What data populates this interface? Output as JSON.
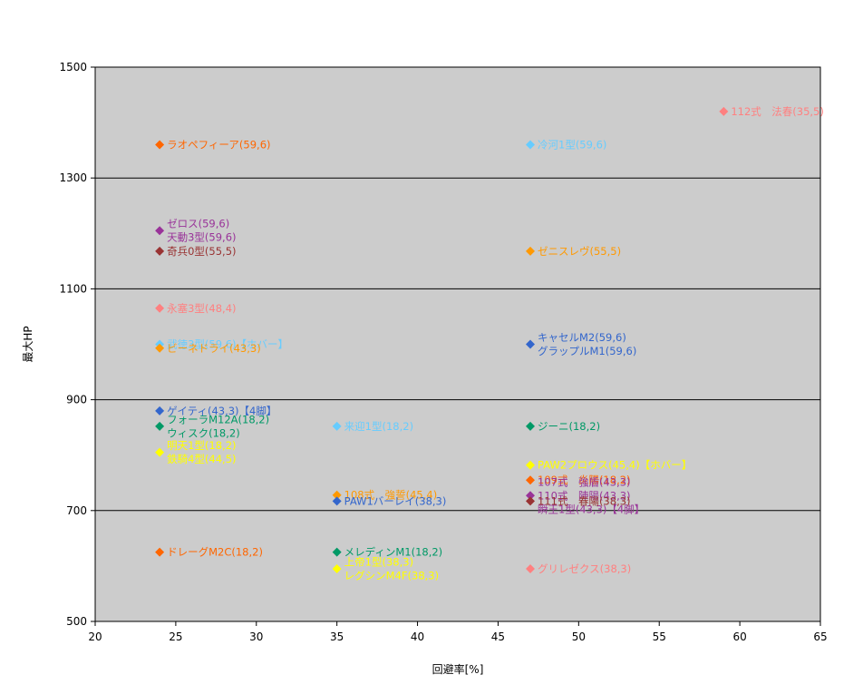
{
  "chart_data": {
    "type": "scatter",
    "xlabel": "回避率[%]",
    "ylabel": "最大HP",
    "xlim": [
      20,
      65
    ],
    "ylim": [
      500,
      1500
    ],
    "x_ticks": [
      "20",
      "25",
      "30",
      "35",
      "40",
      "45",
      "50",
      "55",
      "60",
      "65"
    ],
    "y_ticks": [
      "500",
      "700",
      "900",
      "1100",
      "1300",
      "1500"
    ],
    "grid": "horizontal",
    "plot_background": "#cccccc",
    "points": [
      {
        "x": 24,
        "y": 1360,
        "label": "ラオペフィーア(59,6)",
        "color": "#ff6600"
      },
      {
        "x": 47,
        "y": 1360,
        "label": "冷河1型(59,6)",
        "color": "#66ccff"
      },
      {
        "x": 59,
        "y": 1420,
        "label": "112式　法春(35,5)",
        "color": "#ff8080"
      },
      {
        "x": 24,
        "y": 1205,
        "label": "ゼロス(59,6)",
        "color": "#993399"
      },
      {
        "x": 24,
        "y": 1205,
        "label": "天動3型(59,6)",
        "color": "#993399"
      },
      {
        "x": 24,
        "y": 1168,
        "label": "奇兵0型(55,5)",
        "color": "#993333"
      },
      {
        "x": 47,
        "y": 1168,
        "label": "ゼニスレヴ(55,5)",
        "color": "#ff9900"
      },
      {
        "x": 24,
        "y": 1065,
        "label": "永塞3型(48,4)",
        "color": "#ff8080"
      },
      {
        "x": 24,
        "y": 1000,
        "label": "武徳3型(59,6)【ホバー】",
        "color": "#66ccff"
      },
      {
        "x": 24,
        "y": 993,
        "label": "ビーネドライ(43,3)",
        "color": "#ff9900"
      },
      {
        "x": 47,
        "y": 1000,
        "label": "キャセルM2(59,6)",
        "color": "#3366cc"
      },
      {
        "x": 47,
        "y": 1000,
        "label": "グラップルM1(59,6)",
        "color": "#3366cc"
      },
      {
        "x": 24,
        "y": 880,
        "label": "ゲイティ(43,3)【4脚】",
        "color": "#3366cc"
      },
      {
        "x": 24,
        "y": 852,
        "label": "フォーラM12A(18,2)",
        "color": "#009966"
      },
      {
        "x": 24,
        "y": 852,
        "label": "ウィスク(18,2)",
        "color": "#009966"
      },
      {
        "x": 24,
        "y": 805,
        "label": "明天1型(18,2)",
        "color": "#ffff00"
      },
      {
        "x": 24,
        "y": 805,
        "label": "鉄騎4型(44,5)",
        "color": "#ffff00"
      },
      {
        "x": 35,
        "y": 852,
        "label": "来迎1型(18,2)",
        "color": "#66ccff"
      },
      {
        "x": 47,
        "y": 852,
        "label": "ジーニ(18,2)",
        "color": "#009966"
      },
      {
        "x": 47,
        "y": 782,
        "label": "PAW2プロウス(45,4)【ホバー】",
        "color": "#ffff00"
      },
      {
        "x": 47,
        "y": 755,
        "label": "109式　炎陽(18,2)",
        "color": "#ff6600"
      },
      {
        "x": 47,
        "y": 727,
        "label": "107式　強盾(43,3)",
        "color": "#993399"
      },
      {
        "x": 47,
        "y": 727,
        "label": "110式　陣陽(43,3)",
        "color": "#993399"
      },
      {
        "x": 47,
        "y": 727,
        "label": "瞬王1型(43,3)【4脚】",
        "color": "#993399"
      },
      {
        "x": 47,
        "y": 717,
        "label": "111式　春陽(38,3)",
        "color": "#993333"
      },
      {
        "x": 35,
        "y": 728,
        "label": "108式　強誓(45,4)",
        "color": "#ff9900"
      },
      {
        "x": 35,
        "y": 717,
        "label": "PAW1バーレイ(38,3)",
        "color": "#3366cc"
      },
      {
        "x": 24,
        "y": 625,
        "label": "ドレーグM2C(18,2)",
        "color": "#ff6600"
      },
      {
        "x": 35,
        "y": 625,
        "label": "メレディンM1(18,2)",
        "color": "#009966"
      },
      {
        "x": 35,
        "y": 595,
        "label": "上帝1型(38,3)",
        "color": "#ffff00"
      },
      {
        "x": 35,
        "y": 595,
        "label": "レグシンM4F(38,3)",
        "color": "#ffff00"
      },
      {
        "x": 47,
        "y": 595,
        "label": "グリレゼクス(38,3)",
        "color": "#ff8080"
      }
    ]
  }
}
